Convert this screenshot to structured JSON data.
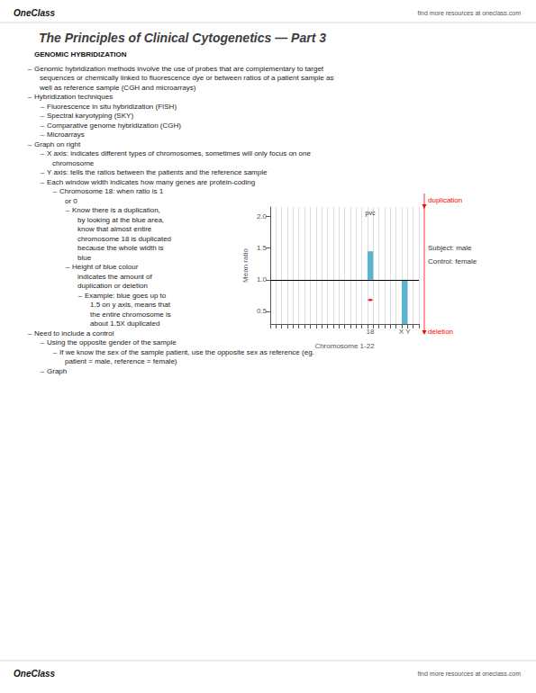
{
  "page": {
    "brand": "OneClass",
    "header_text": "find more resources at oneclass.com",
    "section": "GENOMIC HYBRIDIZATION",
    "bullet": "‒",
    "notes": [
      {
        "lines": [
          "Genomic hybridization methods involve the use of probes that are complementary to target",
          "sequences or chemically linked to fluorescence dye or between ratios of a patient sample as",
          "well as reference sample (CGH and microarrays)"
        ]
      },
      {
        "lines": [
          "Hybridization techniques"
        ],
        "sub": [
          {
            "lines": [
              "Fluorescence in situ hybridization (FISH)"
            ]
          },
          {
            "lines": [
              "Spectral karyotyping (SKY)"
            ]
          },
          {
            "lines": [
              "Comparative genome hybridization (CGH)"
            ]
          },
          {
            "lines": [
              "Microarrays"
            ]
          }
        ]
      },
      {
        "lines": [
          "Graph on right"
        ],
        "sub": [
          {
            "lines": [
              "X axis: indicates different types of chromosomes, sometimes will only focus on one",
              "chromosome"
            ]
          },
          {
            "lines": [
              "Y axis: tells the ratios between the patients and the reference sample"
            ]
          },
          {
            "lines": [
              "Each window width indicates how many genes are protein-coding"
            ],
            "sub": [
              {
                "lines": [
                  "Chromosome 18: when ratio is 1",
                  "or 0"
                ],
                "sub": [
                  {
                    "lines": [
                      "Know there is a duplication,",
                      "by looking at the blue area,",
                      "know that almost entire",
                      "chromosome 18 is duplicated",
                      "because the whole width is",
                      "blue"
                    ]
                  },
                  {
                    "lines": [
                      "Height of blue colour",
                      "indicates the amount of",
                      "duplication or deletion"
                    ],
                    "sub": [
                      {
                        "lines": [
                          "Example: blue goes up to",
                          "1.5 on y axis, means that",
                          "the entire chromosome is",
                          "about 1.5X duplicated"
                        ]
                      }
                    ]
                  }
                ]
              }
            ]
          }
        ]
      },
      {
        "lines": [
          "Need to include a control"
        ],
        "sub": [
          {
            "lines": [
              "Using the opposite gender of the sample"
            ],
            "sub": [
              {
                "lines": [
                  "If we know the sex of the sample patient, use the opposite sex as reference (eg.",
                  "patient = male, reference = female)"
                ]
              }
            ]
          },
          {
            "lines": [
              "Graph"
            ]
          }
        ]
      }
    ]
  },
  "chart_data": {
    "type": "bar",
    "title": "The Principles of Clinical Cytogenetics — Part 3",
    "categories": [
      null,
      null,
      null,
      null,
      null,
      null,
      null,
      null,
      null,
      null,
      null,
      null,
      null,
      null,
      null,
      null,
      null,
      "18",
      null,
      null,
      null,
      null,
      null,
      "X Y",
      null,
      null
    ],
    "values": [
      null,
      null,
      null,
      null,
      null,
      null,
      null,
      null,
      null,
      null,
      null,
      null,
      null,
      null,
      null,
      null,
      null,
      1.45,
      null,
      null,
      null,
      null,
      null,
      0.3,
      null,
      null
    ],
    "baseline": 1.0,
    "color": "#5ab4d0",
    "xlabel": "Chromosome 1-22",
    "ylabel": "Mean ratio",
    "ylim": [
      0.3,
      2.15
    ],
    "yticks": [
      0.5,
      {
        "value": 1,
        "label": "1.0"
      },
      1.5,
      {
        "value": 2,
        "label": "2.0"
      }
    ],
    "grid": "x",
    "annotations": [
      {
        "text": "pvc",
        "category": "18"
      },
      {
        "arrow": "both",
        "category": "18",
        "y": 0.68,
        "color": "red"
      },
      {
        "text": "duplication",
        "color": "red",
        "arrow": "down"
      },
      {
        "text": "Subject: male"
      },
      {
        "text": "Control: female"
      },
      {
        "text": "deletion",
        "color": "red",
        "arrow": "down"
      }
    ]
  }
}
